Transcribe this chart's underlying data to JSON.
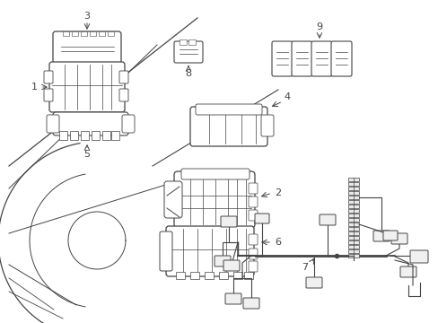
{
  "bg_color": "#ffffff",
  "line_color": "#444444",
  "fig_width": 4.89,
  "fig_height": 3.6,
  "dpi": 100
}
